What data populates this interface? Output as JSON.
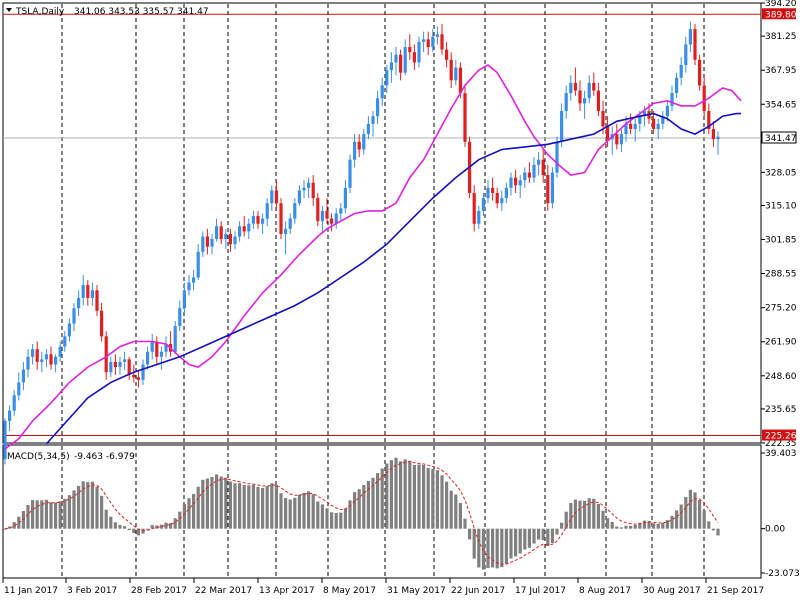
{
  "chart_data": {
    "type": "candlestick",
    "symbol_label": "TSLA,Daily",
    "ohlc_label": "341.06 343.53 335.57 341.47",
    "price_axis": {
      "range": [
        222.35,
        394.2
      ],
      "tick_labels": [
        "394.20",
        "381.25",
        "367.95",
        "354.65",
        "341.47",
        "328.05",
        "315.10",
        "301.85",
        "288.55",
        "275.20",
        "261.90",
        "248.60",
        "235.65",
        "222.35"
      ]
    },
    "horizontal_lines": [
      {
        "value": 389.8,
        "label": "389.80",
        "color": "#d01010"
      },
      {
        "value": 225.26,
        "label": "225.26",
        "color": "#d01010"
      }
    ],
    "current_price": {
      "value": 341.47,
      "label": "341.47"
    },
    "date_labels": [
      "11 Jan 2017",
      "3 Feb 2017",
      "28 Feb 2017",
      "22 Mar 2017",
      "13 Apr 2017",
      "8 May 2017",
      "31 May 2017",
      "22 Jun 2017",
      "17 Jul 2017",
      "8 Aug 2017",
      "30 Aug 2017",
      "21 Sep 2017"
    ],
    "moving_averages": [
      {
        "color": "#e020e0",
        "points": [
          [
            0,
            220
          ],
          [
            3,
            224
          ],
          [
            6,
            231
          ],
          [
            10,
            238
          ],
          [
            14,
            246
          ],
          [
            18,
            252
          ],
          [
            22,
            256
          ],
          [
            25,
            260
          ],
          [
            28,
            262
          ],
          [
            32,
            262
          ],
          [
            35,
            261
          ],
          [
            38,
            256
          ],
          [
            40,
            253
          ],
          [
            42,
            252
          ],
          [
            45,
            256
          ],
          [
            48,
            262
          ],
          [
            52,
            272
          ],
          [
            56,
            281
          ],
          [
            60,
            288
          ],
          [
            64,
            296
          ],
          [
            68,
            303
          ],
          [
            70,
            306
          ],
          [
            73,
            309
          ],
          [
            76,
            312
          ],
          [
            79,
            313
          ],
          [
            82,
            313
          ],
          [
            85,
            316
          ],
          [
            88,
            326
          ],
          [
            91,
            333
          ],
          [
            94,
            343
          ],
          [
            97,
            353
          ],
          [
            100,
            362
          ],
          [
            103,
            368
          ],
          [
            105,
            370
          ],
          [
            107,
            367
          ],
          [
            110,
            358
          ],
          [
            113,
            348
          ],
          [
            115,
            342
          ],
          [
            118,
            335
          ],
          [
            121,
            330
          ],
          [
            123,
            327
          ],
          [
            126,
            328
          ],
          [
            129,
            337
          ],
          [
            132,
            342
          ],
          [
            135,
            347
          ],
          [
            138,
            351
          ],
          [
            141,
            355
          ],
          [
            144,
            356
          ],
          [
            147,
            354
          ],
          [
            150,
            354
          ],
          [
            153,
            357
          ],
          [
            156,
            361
          ],
          [
            158,
            360
          ],
          [
            160,
            356
          ]
        ]
      },
      {
        "color": "#1010c0",
        "points": [
          [
            9,
            222
          ],
          [
            13,
            230
          ],
          [
            18,
            240
          ],
          [
            23,
            246
          ],
          [
            28,
            250
          ],
          [
            33,
            253
          ],
          [
            38,
            256
          ],
          [
            43,
            260
          ],
          [
            48,
            264
          ],
          [
            53,
            268
          ],
          [
            58,
            272
          ],
          [
            63,
            276
          ],
          [
            68,
            281
          ],
          [
            73,
            287
          ],
          [
            78,
            293
          ],
          [
            83,
            300
          ],
          [
            88,
            309
          ],
          [
            93,
            318
          ],
          [
            98,
            326
          ],
          [
            103,
            333
          ],
          [
            108,
            337
          ],
          [
            113,
            338
          ],
          [
            118,
            339
          ],
          [
            123,
            341
          ],
          [
            128,
            343
          ],
          [
            133,
            348
          ],
          [
            138,
            350
          ],
          [
            141,
            351
          ],
          [
            144,
            349
          ],
          [
            147,
            345
          ],
          [
            150,
            343
          ],
          [
            153,
            346
          ],
          [
            156,
            350
          ],
          [
            159,
            351
          ],
          [
            160,
            351
          ]
        ]
      }
    ],
    "candles": [
      [
        216,
        232,
        214,
        231
      ],
      [
        231,
        237,
        227,
        235
      ],
      [
        235,
        243,
        233,
        241
      ],
      [
        241,
        250,
        239,
        246
      ],
      [
        246,
        254,
        243,
        251
      ],
      [
        251,
        259,
        248,
        256
      ],
      [
        256,
        261,
        253,
        259
      ],
      [
        259,
        262,
        251,
        254
      ],
      [
        254,
        258,
        250,
        255
      ],
      [
        255,
        259,
        252,
        257
      ],
      [
        257,
        260,
        251,
        253
      ],
      [
        253,
        257,
        250,
        256
      ],
      [
        256,
        262,
        254,
        260
      ],
      [
        260,
        266,
        258,
        264
      ],
      [
        264,
        271,
        262,
        269
      ],
      [
        269,
        277,
        266,
        275
      ],
      [
        275,
        282,
        272,
        279
      ],
      [
        279,
        288,
        276,
        284
      ],
      [
        284,
        286,
        276,
        279
      ],
      [
        279,
        285,
        276,
        282
      ],
      [
        282,
        284,
        272,
        274
      ],
      [
        274,
        277,
        262,
        264
      ],
      [
        264,
        266,
        247,
        250
      ],
      [
        250,
        256,
        248,
        254
      ],
      [
        254,
        257,
        249,
        252
      ],
      [
        252,
        256,
        249,
        254
      ],
      [
        254,
        258,
        251,
        255
      ],
      [
        255,
        256,
        247,
        249
      ],
      [
        249,
        253,
        246,
        248
      ],
      [
        248,
        251,
        244,
        247
      ],
      [
        247,
        255,
        245,
        253
      ],
      [
        253,
        260,
        251,
        258
      ],
      [
        258,
        265,
        255,
        262
      ],
      [
        262,
        264,
        253,
        256
      ],
      [
        256,
        260,
        251,
        258
      ],
      [
        258,
        264,
        256,
        261
      ],
      [
        261,
        266,
        256,
        258
      ],
      [
        258,
        270,
        257,
        268
      ],
      [
        268,
        278,
        266,
        275
      ],
      [
        275,
        285,
        273,
        282
      ],
      [
        282,
        288,
        280,
        285
      ],
      [
        285,
        290,
        282,
        287
      ],
      [
        287,
        300,
        286,
        297
      ],
      [
        297,
        305,
        295,
        303
      ],
      [
        303,
        306,
        296,
        299
      ],
      [
        299,
        304,
        296,
        302
      ],
      [
        302,
        310,
        301,
        307
      ],
      [
        307,
        309,
        300,
        302
      ],
      [
        302,
        306,
        298,
        304
      ],
      [
        304,
        306,
        297,
        300
      ],
      [
        300,
        305,
        298,
        303
      ],
      [
        303,
        309,
        301,
        307
      ],
      [
        307,
        311,
        303,
        305
      ],
      [
        305,
        310,
        302,
        308
      ],
      [
        308,
        313,
        306,
        311
      ],
      [
        311,
        313,
        306,
        308
      ],
      [
        308,
        312,
        304,
        310
      ],
      [
        310,
        318,
        307,
        316
      ],
      [
        316,
        323,
        313,
        321
      ],
      [
        321,
        325,
        313,
        316
      ],
      [
        316,
        318,
        302,
        304
      ],
      [
        304,
        309,
        296,
        306
      ],
      [
        306,
        312,
        304,
        310
      ],
      [
        310,
        318,
        308,
        316
      ],
      [
        316,
        323,
        315,
        321
      ],
      [
        321,
        325,
        318,
        322
      ],
      [
        322,
        326,
        318,
        324
      ],
      [
        324,
        327,
        315,
        318
      ],
      [
        318,
        320,
        307,
        309
      ],
      [
        309,
        315,
        305,
        313
      ],
      [
        313,
        318,
        308,
        310
      ],
      [
        310,
        312,
        305,
        308
      ],
      [
        308,
        314,
        306,
        312
      ],
      [
        312,
        316,
        309,
        314
      ],
      [
        314,
        325,
        312,
        322
      ],
      [
        322,
        335,
        320,
        333
      ],
      [
        333,
        343,
        330,
        340
      ],
      [
        340,
        343,
        334,
        337
      ],
      [
        337,
        345,
        335,
        343
      ],
      [
        343,
        350,
        341,
        347
      ],
      [
        347,
        352,
        342,
        350
      ],
      [
        350,
        360,
        347,
        357
      ],
      [
        357,
        365,
        354,
        362
      ],
      [
        362,
        370,
        359,
        368
      ],
      [
        368,
        375,
        363,
        371
      ],
      [
        371,
        377,
        366,
        374
      ],
      [
        374,
        376,
        364,
        367
      ],
      [
        367,
        380,
        366,
        377
      ],
      [
        377,
        382,
        372,
        375
      ],
      [
        375,
        378,
        368,
        371
      ],
      [
        371,
        381,
        369,
        379
      ],
      [
        379,
        383,
        375,
        380
      ],
      [
        380,
        383,
        374,
        377
      ],
      [
        377,
        384,
        375,
        381
      ],
      [
        381,
        385,
        378,
        382
      ],
      [
        382,
        386,
        374,
        376
      ],
      [
        376,
        379,
        369,
        372
      ],
      [
        372,
        375,
        361,
        364
      ],
      [
        364,
        372,
        362,
        369
      ],
      [
        369,
        371,
        357,
        359
      ],
      [
        359,
        362,
        338,
        340
      ],
      [
        340,
        342,
        318,
        320
      ],
      [
        320,
        323,
        305,
        308
      ],
      [
        308,
        315,
        306,
        313
      ],
      [
        313,
        320,
        311,
        318
      ],
      [
        318,
        325,
        316,
        322
      ],
      [
        322,
        326,
        317,
        320
      ],
      [
        320,
        322,
        314,
        316
      ],
      [
        316,
        321,
        313,
        318
      ],
      [
        318,
        324,
        316,
        322
      ],
      [
        322,
        328,
        319,
        326
      ],
      [
        326,
        329,
        320,
        323
      ],
      [
        323,
        327,
        318,
        325
      ],
      [
        325,
        330,
        322,
        328
      ],
      [
        328,
        332,
        324,
        326
      ],
      [
        326,
        334,
        324,
        331
      ],
      [
        331,
        336,
        327,
        333
      ],
      [
        333,
        337,
        324,
        327
      ],
      [
        327,
        331,
        313,
        316
      ],
      [
        316,
        330,
        314,
        328
      ],
      [
        328,
        342,
        326,
        340
      ],
      [
        340,
        355,
        338,
        352
      ],
      [
        352,
        362,
        349,
        359
      ],
      [
        359,
        366,
        356,
        363
      ],
      [
        363,
        369,
        358,
        360
      ],
      [
        360,
        364,
        352,
        355
      ],
      [
        355,
        360,
        349,
        357
      ],
      [
        357,
        366,
        355,
        363
      ],
      [
        363,
        367,
        358,
        360
      ],
      [
        360,
        363,
        350,
        352
      ],
      [
        352,
        356,
        343,
        346
      ],
      [
        346,
        350,
        338,
        341
      ],
      [
        341,
        346,
        335,
        343
      ],
      [
        343,
        347,
        337,
        339
      ],
      [
        339,
        345,
        336,
        343
      ],
      [
        343,
        350,
        340,
        347
      ],
      [
        347,
        351,
        343,
        345
      ],
      [
        345,
        349,
        340,
        347
      ],
      [
        347,
        352,
        344,
        350
      ],
      [
        350,
        354,
        346,
        352
      ],
      [
        352,
        355,
        347,
        349
      ],
      [
        349,
        352,
        343,
        345
      ],
      [
        345,
        349,
        341,
        347
      ],
      [
        347,
        352,
        345,
        350
      ],
      [
        350,
        356,
        348,
        354
      ],
      [
        354,
        362,
        352,
        359
      ],
      [
        359,
        367,
        357,
        365
      ],
      [
        365,
        373,
        362,
        370
      ],
      [
        370,
        381,
        367,
        378
      ],
      [
        378,
        387,
        375,
        384
      ],
      [
        384,
        386,
        370,
        372
      ],
      [
        372,
        374,
        360,
        362
      ],
      [
        362,
        365,
        350,
        352
      ],
      [
        352,
        355,
        343,
        345
      ],
      [
        345,
        348,
        338,
        341
      ],
      [
        341,
        344,
        335,
        342
      ]
    ],
    "macd": {
      "label": "MACD(5,34,5)",
      "values_label": "-9.463 -6.979",
      "axis": {
        "max": 39.403,
        "zero": 0.0,
        "min": -23.073,
        "tick_labels": [
          "39.403",
          "0.00",
          "-23.073"
        ]
      },
      "signal_color": "#e02020",
      "hist_color": "#808080"
    }
  }
}
